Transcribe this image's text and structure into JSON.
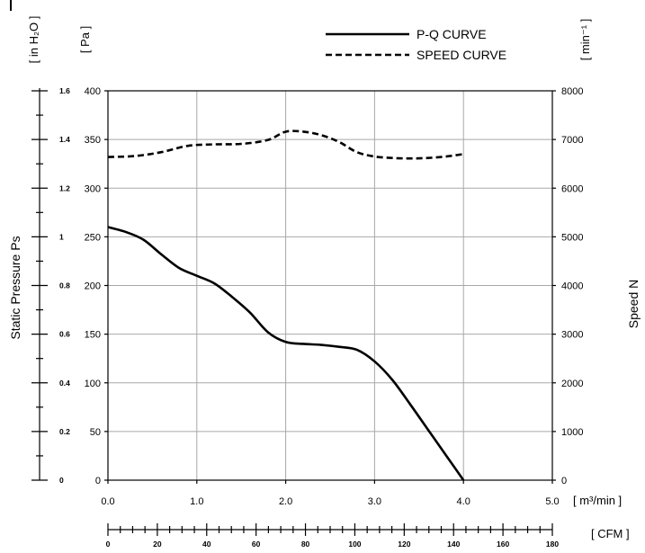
{
  "chart_data": {
    "type": "line",
    "legend": {
      "placement": "top-center",
      "entries": [
        {
          "label": "P-Q CURVE",
          "style": "solid"
        },
        {
          "label": "SPEED CURVE",
          "style": "dashed"
        }
      ]
    },
    "axes": {
      "left_inner": {
        "label": "Static Pressure Ps",
        "unit": "[ Pa ]",
        "range": [
          0,
          400
        ],
        "ticks": [
          "0",
          "50",
          "100",
          "150",
          "200",
          "250",
          "300",
          "350",
          "400"
        ]
      },
      "left_outer": {
        "unit": "[ in H₂O ]",
        "range": [
          0,
          1.6
        ],
        "ticks": [
          "0",
          "0.2",
          "0.4",
          "0.6",
          "0.8",
          "1",
          "1.2",
          "1.4",
          "1.6"
        ]
      },
      "right": {
        "label": "Speed N",
        "unit": "[ min⁻¹ ]",
        "range": [
          0,
          8000
        ],
        "ticks": [
          "0",
          "1000",
          "2000",
          "3000",
          "4000",
          "5000",
          "6000",
          "7000",
          "8000"
        ]
      },
      "bottom": {
        "unit": "[ m³/min ]",
        "range": [
          0,
          5
        ],
        "ticks": [
          "0.0",
          "1.0",
          "2.0",
          "3.0",
          "4.0",
          "5.0"
        ]
      },
      "bottom_secondary": {
        "unit": "[ CFM ]",
        "range": [
          0,
          180
        ],
        "ticks": [
          "0",
          "20",
          "40",
          "60",
          "80",
          "100",
          "120",
          "140",
          "160",
          "180"
        ]
      }
    },
    "grid": true,
    "series": [
      {
        "name": "P-Q CURVE",
        "axis": "left_inner",
        "style": "solid",
        "x": [
          0.0,
          0.2,
          0.4,
          0.6,
          0.8,
          1.0,
          1.2,
          1.4,
          1.6,
          1.8,
          2.0,
          2.2,
          2.4,
          2.6,
          2.8,
          3.0,
          3.2,
          3.4,
          3.6,
          3.8,
          4.0
        ],
        "y": [
          260,
          255,
          247,
          232,
          218,
          210,
          202,
          188,
          172,
          152,
          142,
          140,
          139,
          137,
          134,
          122,
          103,
          78,
          52,
          26,
          0
        ]
      },
      {
        "name": "SPEED CURVE",
        "axis": "right",
        "style": "dashed",
        "x": [
          0.0,
          0.3,
          0.6,
          0.9,
          1.2,
          1.5,
          1.8,
          2.0,
          2.2,
          2.4,
          2.6,
          2.8,
          3.0,
          3.2,
          3.4,
          3.6,
          3.8,
          4.0
        ],
        "y": [
          6640,
          6660,
          6740,
          6870,
          6900,
          6910,
          6990,
          7160,
          7160,
          7090,
          6950,
          6740,
          6650,
          6620,
          6610,
          6620,
          6650,
          6700
        ]
      }
    ]
  }
}
